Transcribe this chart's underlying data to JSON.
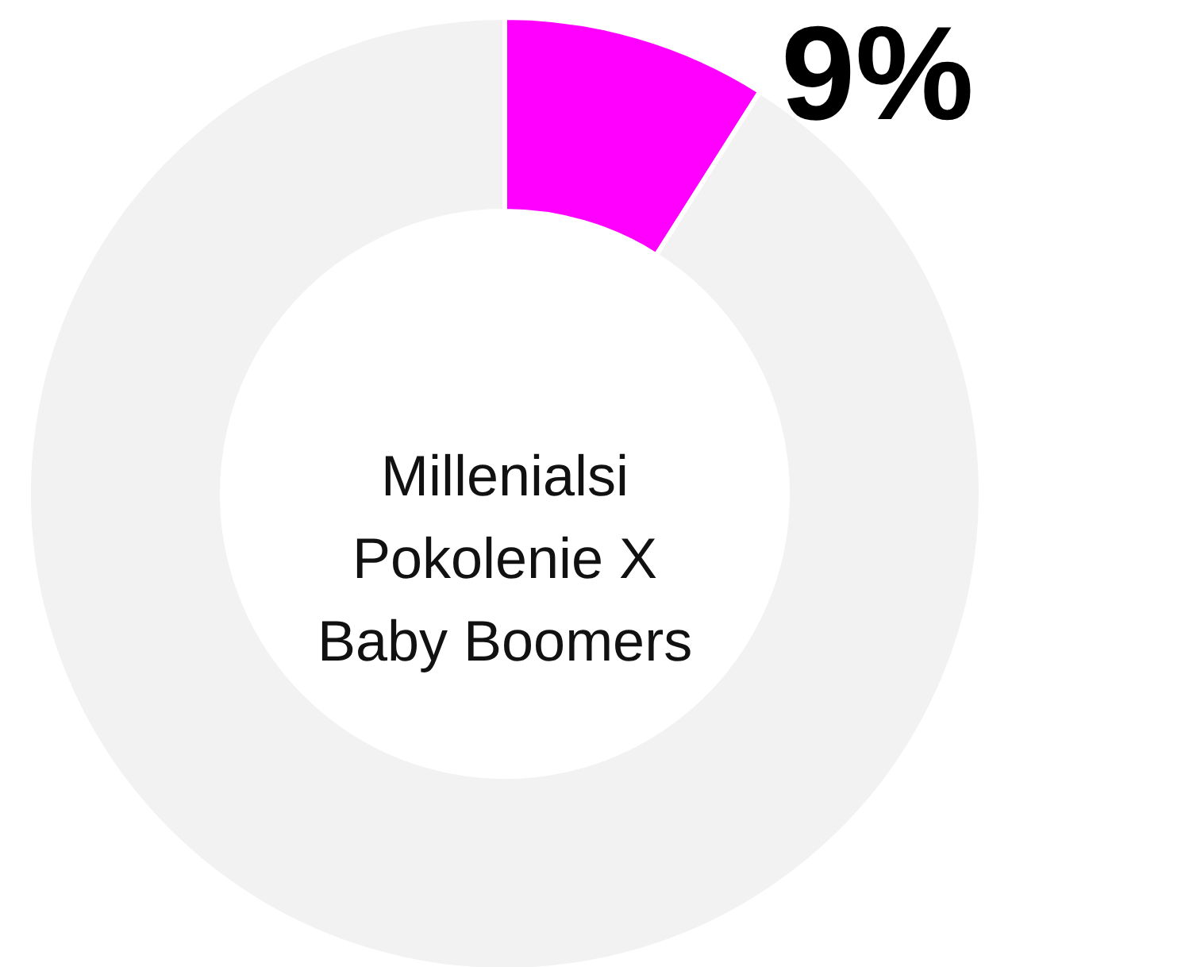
{
  "chart_data": {
    "type": "donut",
    "categories": [
      null,
      null
    ],
    "values": [
      9,
      91
    ],
    "colors": [
      "#ff00ff",
      "#f2f2f2"
    ],
    "value_labels": [
      "9%",
      null
    ],
    "annotations": [
      "Millenialsi",
      "Pokolenie X",
      "Baby Boomers"
    ]
  }
}
